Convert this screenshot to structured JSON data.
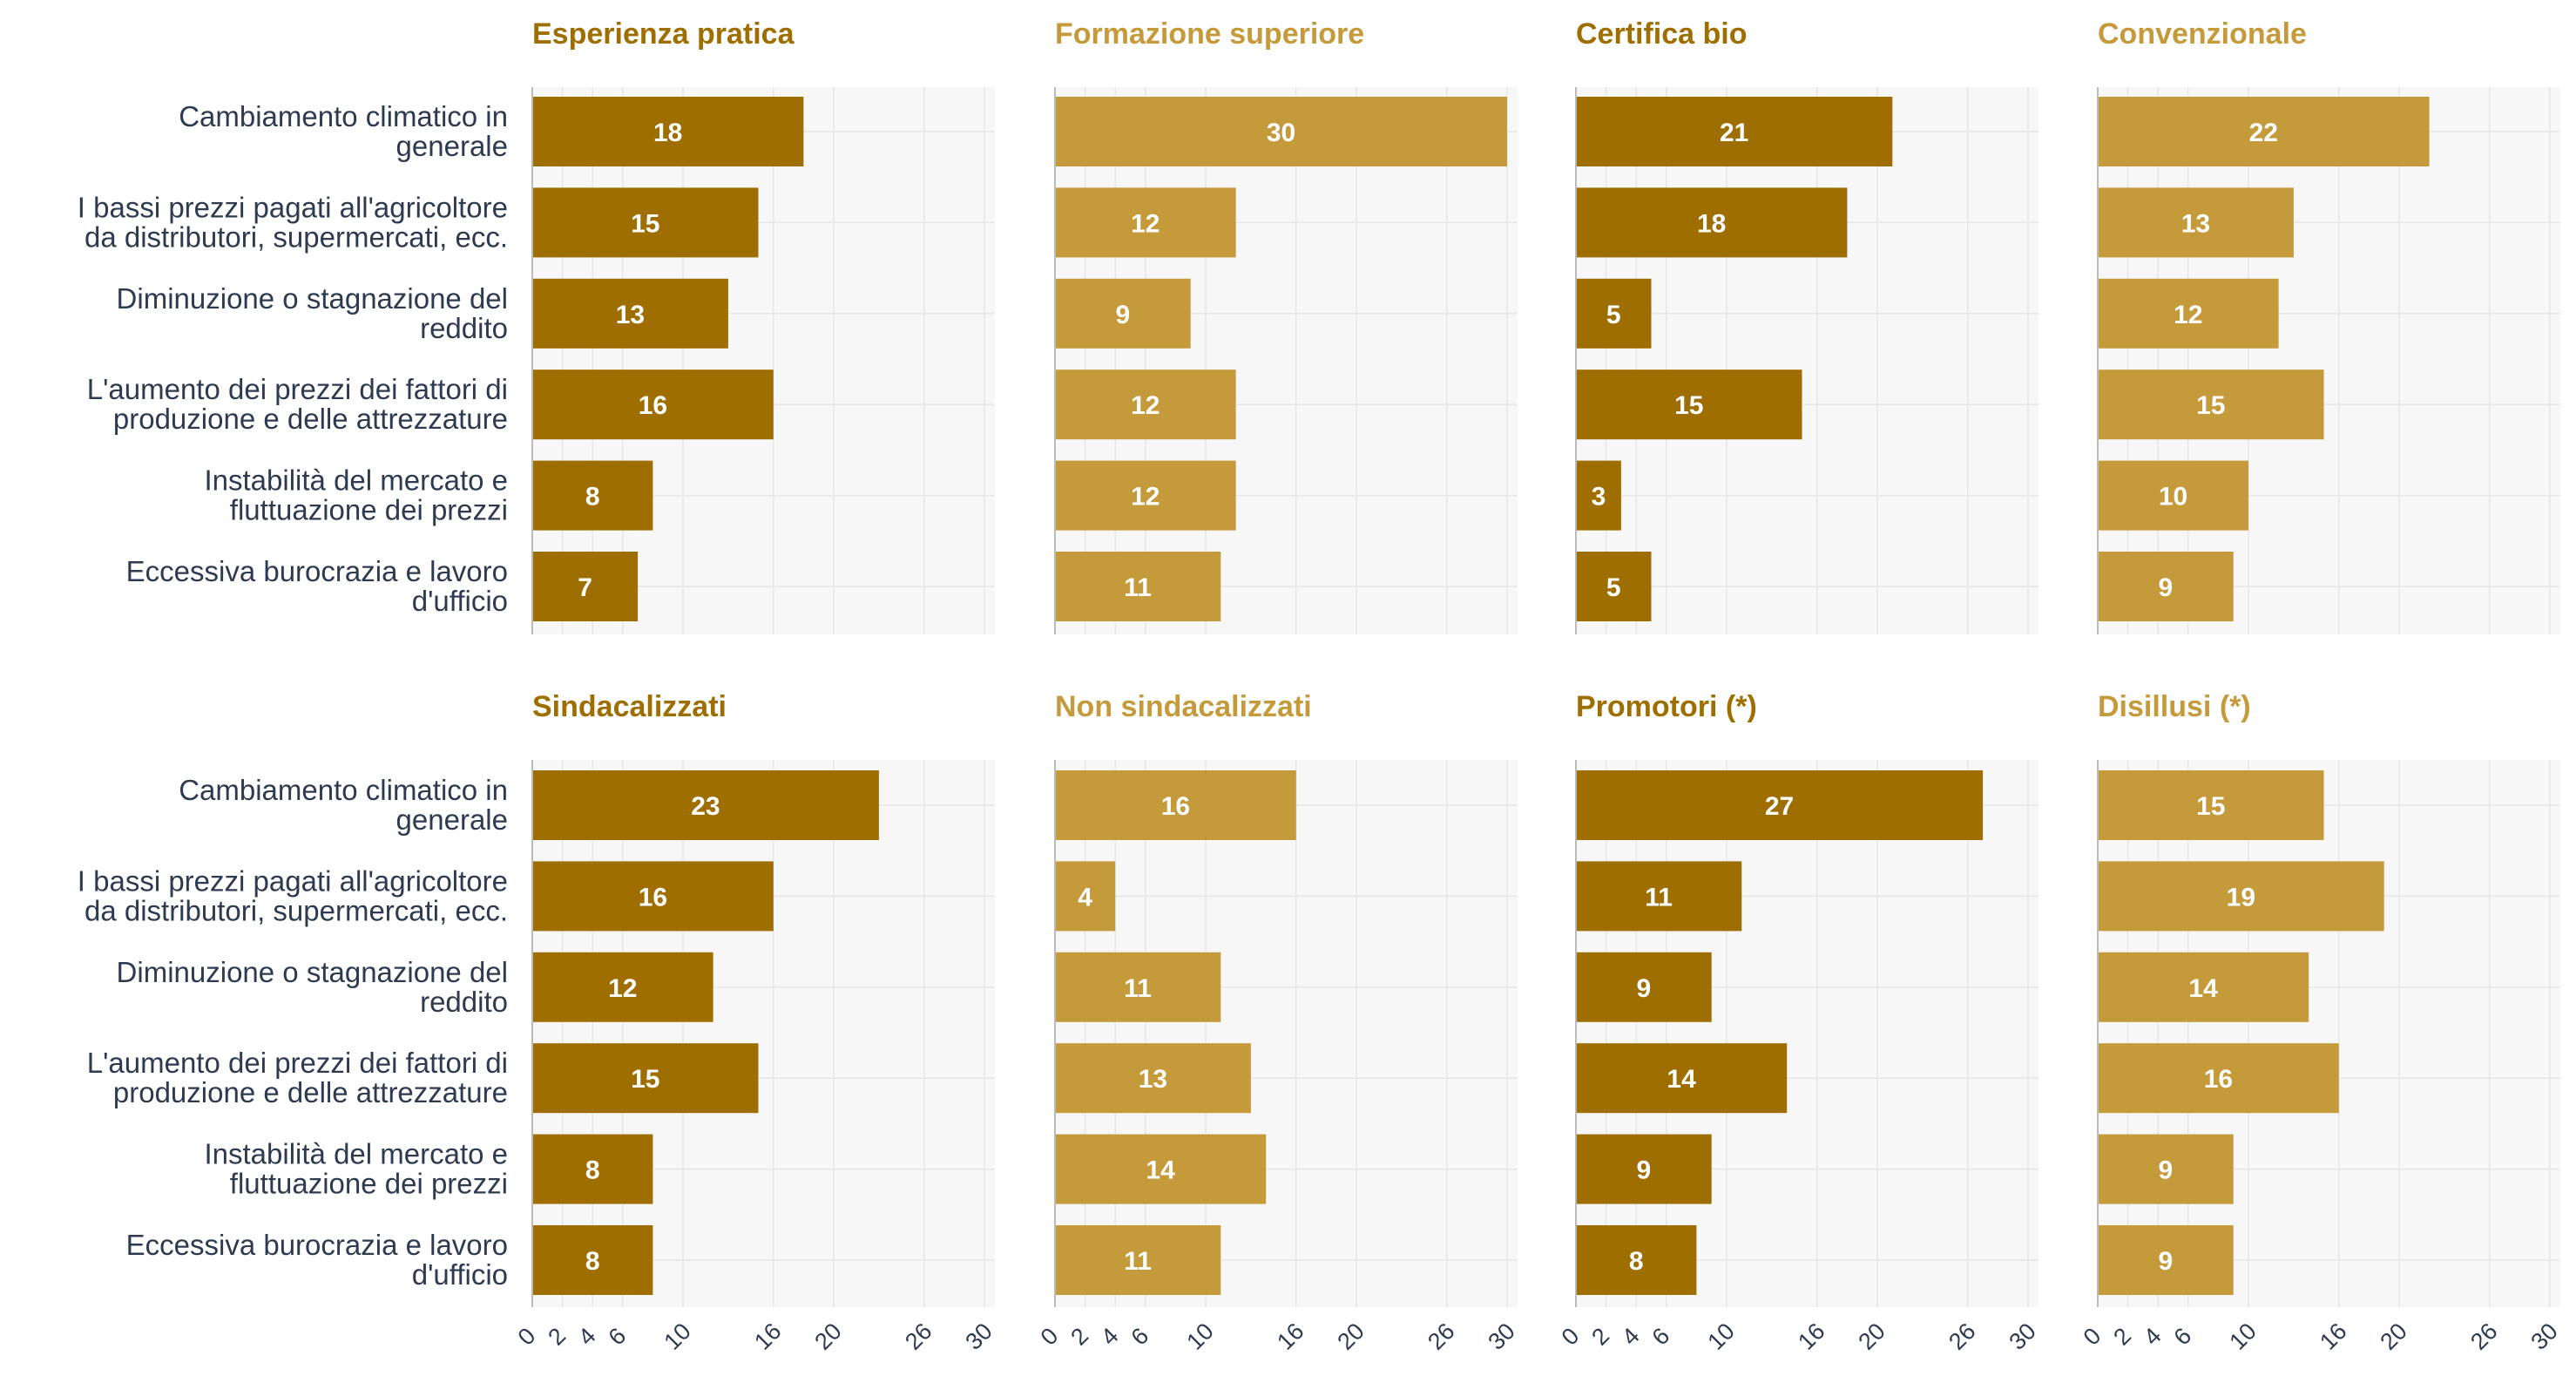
{
  "colors": {
    "dark": "#9e6f00",
    "light": "#c49a3b",
    "title_dark": "#9e6f00",
    "title_light": "#c49a3b",
    "label": "#2e3a4f",
    "panel_bg": "#f7f7f7",
    "grid": "#e6e6e6",
    "value_text": "#ffffff"
  },
  "chart_data": {
    "type": "bar",
    "orientation": "horizontal",
    "layout": "small-multiples 2x4",
    "categories": [
      "Cambiamento climatico in generale",
      "I bassi prezzi pagati all'agricoltore da distributori, supermercati, ecc.",
      "Diminuzione o stagnazione del reddito",
      "L'aumento dei prezzi dei fattori di produzione e delle attrezzature",
      "Instabilità del mercato e fluttuazione dei prezzi",
      "Eccessiva burocrazia e lavoro d'ufficio"
    ],
    "category_lines": [
      [
        "Cambiamento climatico in",
        "generale"
      ],
      [
        "I bassi prezzi pagati all'agricoltore",
        "da distributori, supermercati, ecc."
      ],
      [
        "Diminuzione o stagnazione del",
        "reddito"
      ],
      [
        "L'aumento dei prezzi dei fattori di",
        "produzione e delle attrezzature"
      ],
      [
        "Instabilità del mercato e",
        "fluttuazione dei prezzi"
      ],
      [
        "Eccessiva burocrazia e lavoro",
        "d'ufficio"
      ]
    ],
    "xlim": [
      0,
      30
    ],
    "x_ticks": [
      0,
      2,
      4,
      6,
      10,
      16,
      20,
      26,
      30
    ],
    "grid": true,
    "panels": [
      {
        "title": "Esperienza pratica",
        "color": "dark",
        "values": [
          18,
          15,
          13,
          16,
          8,
          7
        ]
      },
      {
        "title": "Formazione superiore",
        "color": "light",
        "values": [
          30,
          12,
          9,
          12,
          12,
          11
        ]
      },
      {
        "title": "Certifica bio",
        "color": "dark",
        "values": [
          21,
          18,
          5,
          15,
          3,
          5
        ]
      },
      {
        "title": "Convenzionale",
        "color": "light",
        "values": [
          22,
          13,
          12,
          15,
          10,
          9
        ]
      },
      {
        "title": "Sindacalizzati",
        "color": "dark",
        "values": [
          23,
          16,
          12,
          15,
          8,
          8
        ]
      },
      {
        "title": "Non sindacalizzati",
        "color": "light",
        "values": [
          16,
          4,
          11,
          13,
          14,
          11
        ]
      },
      {
        "title": "Promotori (*)",
        "color": "dark",
        "values": [
          27,
          11,
          9,
          14,
          9,
          8
        ]
      },
      {
        "title": "Disillusi (*)",
        "color": "light",
        "values": [
          15,
          19,
          14,
          16,
          9,
          9
        ]
      }
    ]
  }
}
